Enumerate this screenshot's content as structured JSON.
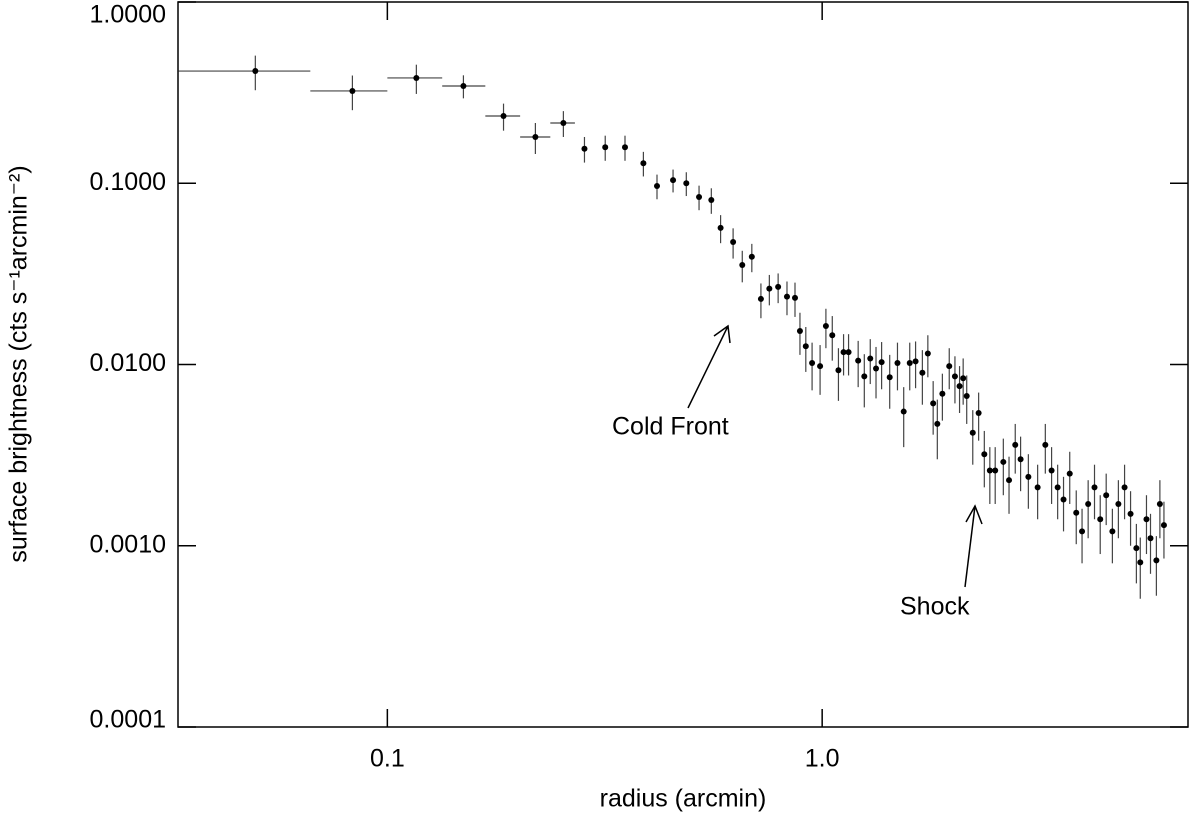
{
  "chart_data": {
    "type": "errorbar-scatter",
    "xlabel": "radius (arcmin)",
    "ylabel": "surface brightness (cts s⁻¹arcmin⁻²)",
    "xscale": "log",
    "yscale": "log",
    "xlim": [
      0.033,
      6.94
    ],
    "ylim": [
      0.0001,
      1
    ],
    "xticks": [
      {
        "value": 0.1,
        "label": "0.1"
      },
      {
        "value": 1,
        "label": "1.0"
      }
    ],
    "yticks": [
      {
        "value": 1,
        "label": "1.0000"
      },
      {
        "value": 0.1,
        "label": "0.1000"
      },
      {
        "value": 0.01,
        "label": "0.0100"
      },
      {
        "value": 0.001,
        "label": "0.0010"
      },
      {
        "value": 0.0001,
        "label": "0.0001"
      }
    ],
    "color": "#000000",
    "x": [
      0.0497,
      0.0831,
      0.1166,
      0.1496,
      0.185,
      0.219,
      0.254,
      0.284,
      0.317,
      0.352,
      0.388,
      0.417,
      0.454,
      0.487,
      0.521,
      0.556,
      0.584,
      0.624,
      0.655,
      0.689,
      0.723,
      0.756,
      0.792,
      0.83,
      0.866,
      0.889,
      0.917,
      0.948,
      0.989,
      1.02,
      1.055,
      1.09,
      1.12,
      1.15,
      1.21,
      1.25,
      1.29,
      1.33,
      1.37,
      1.43,
      1.49,
      1.54,
      1.59,
      1.64,
      1.7,
      1.75,
      1.8,
      1.84,
      1.89,
      1.96,
      2.02,
      2.07,
      2.11,
      2.15,
      2.22,
      2.29,
      2.36,
      2.43,
      2.5,
      2.61,
      2.69,
      2.78,
      2.86,
      2.98,
      3.13,
      3.26,
      3.37,
      3.48,
      3.59,
      3.71,
      3.84,
      3.96,
      4.09,
      4.23,
      4.36,
      4.5,
      4.65,
      4.8,
      4.96,
      5.12,
      5.28,
      5.39,
      5.57,
      5.69,
      5.87,
      5.98,
      6.11
    ],
    "values": [
      0.416,
      0.323,
      0.381,
      0.344,
      0.235,
      0.18,
      0.215,
      0.155,
      0.158,
      0.158,
      0.129,
      0.0966,
      0.104,
      0.1,
      0.084,
      0.0808,
      0.0567,
      0.0474,
      0.0354,
      0.0393,
      0.023,
      0.0262,
      0.0268,
      0.0237,
      0.0233,
      0.0153,
      0.0126,
      0.0102,
      0.0098,
      0.0163,
      0.0145,
      0.0093,
      0.0117,
      0.0117,
      0.0105,
      0.0086,
      0.0108,
      0.0095,
      0.0103,
      0.0085,
      0.0102,
      0.0055,
      0.0102,
      0.0104,
      0.009,
      0.0115,
      0.0061,
      0.0047,
      0.0069,
      0.0098,
      0.0086,
      0.0076,
      0.0084,
      0.0067,
      0.0042,
      0.0054,
      0.0032,
      0.0026,
      0.0026,
      0.0029,
      0.0023,
      0.0036,
      0.003,
      0.0024,
      0.0021,
      0.0036,
      0.0026,
      0.0021,
      0.0018,
      0.0025,
      0.00152,
      0.0012,
      0.0017,
      0.0021,
      0.0014,
      0.0019,
      0.0012,
      0.0017,
      0.0021,
      0.0015,
      0.00097,
      0.00081,
      0.0014,
      0.0011,
      0.00083,
      0.0017,
      0.0013
    ],
    "yerr": [
      0.09,
      0.07,
      0.07,
      0.05,
      0.04,
      0.035,
      0.035,
      0.025,
      0.025,
      0.025,
      0.02,
      0.015,
      0.015,
      0.015,
      0.013,
      0.013,
      0.01,
      0.009,
      0.007,
      0.007,
      0.005,
      0.005,
      0.005,
      0.005,
      0.005,
      0.004,
      0.0035,
      0.003,
      0.003,
      0.004,
      0.004,
      0.003,
      0.003,
      0.003,
      0.003,
      0.0028,
      0.003,
      0.003,
      0.003,
      0.0028,
      0.003,
      0.002,
      0.003,
      0.003,
      0.003,
      0.003,
      0.002,
      0.0017,
      0.002,
      0.0025,
      0.0025,
      0.0022,
      0.0024,
      0.002,
      0.0014,
      0.0016,
      0.0011,
      0.0009,
      0.0009,
      0.001,
      0.0008,
      0.0011,
      0.001,
      0.0008,
      0.0007,
      0.0011,
      0.0009,
      0.0007,
      0.0006,
      0.0008,
      0.0005,
      0.0004,
      0.0006,
      0.0007,
      0.0005,
      0.0006,
      0.0004,
      0.0006,
      0.0007,
      0.0005,
      0.00035,
      0.0003,
      0.0005,
      0.0004,
      0.0003,
      0.0006,
      0.00045
    ],
    "x_low": [
      0.0331,
      0.0665,
      0.1,
      0.1337,
      0.168,
      0.202,
      0.237,
      null,
      null,
      null,
      null,
      null,
      null,
      null,
      null,
      null,
      null,
      null,
      null,
      null,
      null,
      null,
      null,
      null,
      null,
      null,
      null,
      null,
      null,
      null,
      null,
      null,
      null,
      null,
      null,
      null,
      null,
      null,
      null,
      null,
      null,
      null,
      null,
      null,
      null,
      null,
      null,
      null,
      null,
      null,
      null,
      null,
      null,
      null,
      null,
      null,
      null,
      null,
      null,
      null,
      null,
      null,
      null,
      null,
      null,
      null,
      null,
      null,
      null,
      null,
      null,
      null,
      null,
      null,
      null,
      null,
      null,
      null,
      null,
      null,
      null,
      null,
      null,
      null,
      null,
      null,
      null
    ],
    "x_high": [
      0.0665,
      0.1,
      0.1337,
      0.168,
      0.202,
      0.237,
      0.27,
      null,
      null,
      null,
      null,
      null,
      null,
      null,
      null,
      null,
      null,
      null,
      null,
      null,
      null,
      null,
      null,
      null,
      null,
      null,
      null,
      null,
      null,
      null,
      null,
      null,
      null,
      null,
      null,
      null,
      null,
      null,
      null,
      null,
      null,
      null,
      null,
      null,
      null,
      null,
      null,
      null,
      null,
      null,
      null,
      null,
      null,
      null,
      null,
      null,
      null,
      null,
      null,
      null,
      null,
      null,
      null,
      null,
      null,
      null,
      null,
      null,
      null,
      null,
      null,
      null,
      null,
      null,
      null,
      null,
      null,
      null,
      null,
      null,
      null,
      null,
      null,
      null,
      null,
      null,
      null
    ],
    "annotations": [
      "Cold Front",
      "Shock"
    ]
  }
}
